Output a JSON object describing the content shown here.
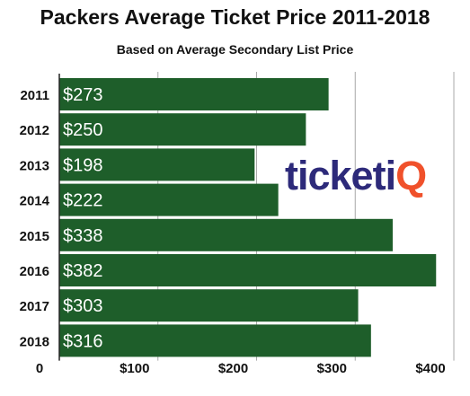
{
  "chart_data": {
    "type": "bar",
    "orientation": "horizontal",
    "title": "Packers Average Ticket Price 2011-2018",
    "subtitle": "Based on Average Secondary List Price",
    "categories": [
      "2011",
      "2012",
      "2013",
      "2014",
      "2015",
      "2016",
      "2017",
      "2018"
    ],
    "values": [
      273,
      250,
      198,
      222,
      338,
      382,
      303,
      316
    ],
    "data_labels": [
      "$273",
      "$250",
      "$198",
      "$222",
      "$338",
      "$382",
      "$303",
      "$316"
    ],
    "xlim": [
      0,
      410
    ],
    "x_ticks": [
      0,
      100,
      200,
      300,
      400
    ],
    "x_tick_labels": [
      "0",
      "$100",
      "$200",
      "$300",
      "$400"
    ],
    "grid": true,
    "bar_color": "#1e5e2a",
    "label_color": "#ffffff"
  },
  "logo": {
    "name": "ticketiq-logo",
    "text_main": "ticket",
    "text_i": "i",
    "text_q": "Q",
    "primary_color": "#2d2a7a",
    "accent_color": "#f0512b"
  }
}
